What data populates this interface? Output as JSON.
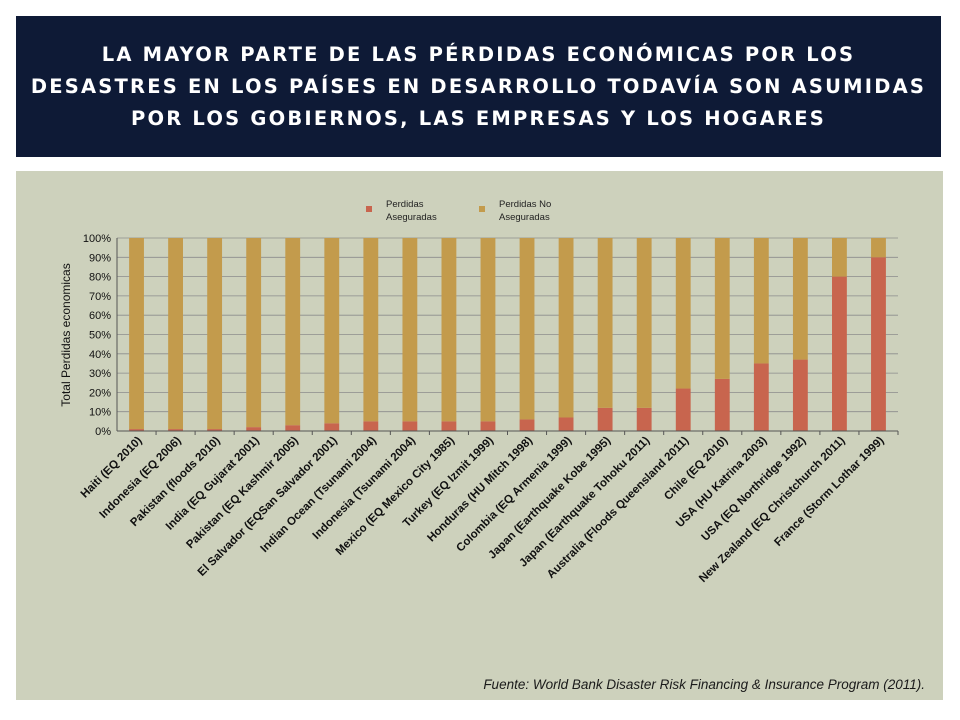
{
  "header": {
    "title": "LA MAYOR PARTE DE LAS PÉRDIDAS ECONÓMICAS POR LOS DESASTRES EN LOS PAÍSES EN DESARROLLO TODAVÍA SON ASUMIDAS POR LOS GOBIERNOS, LAS EMPRESAS Y LOS HOGARES"
  },
  "footer": {
    "source": "Fuente: World Bank Disaster Risk Financing & Insurance Program (2011)."
  },
  "colors": {
    "title_bg": "#0e1a36",
    "panel_bg": "#cdd1bc",
    "insured": "#c8654e",
    "uninsured": "#c39b4c"
  },
  "chart_data": {
    "type": "bar",
    "stacked": true,
    "title": "",
    "xlabel": "",
    "ylabel": "Total Perdidas economicas",
    "ylim": [
      0,
      100
    ],
    "yticks": [
      "0%",
      "10%",
      "20%",
      "30%",
      "40%",
      "50%",
      "60%",
      "70%",
      "80%",
      "90%",
      "100%"
    ],
    "grid": true,
    "legend_position": "top",
    "categories": [
      "Haiti (EQ 2010)",
      "Indonesia (EQ 2006)",
      "Pakistan (floods 2010)",
      "India (EQ Gujarat 2001)",
      "Pakistan (EQ Kashmir 2005)",
      "El Salvador (EQSan Salvador 2001)",
      "Indian Ocean (Tsunami 2004)",
      "Indonesia (Tsunami 2004)",
      "Mexico (EQ Mexico City 1985)",
      "Turkey (EQ Izmit 1999)",
      "Honduras (HU Mitch 1998)",
      "Colombia (EQ Armenia 1999)",
      "Japan (Earthquake Kobe 1995)",
      "Japan (Earthquake Tohoku 2011)",
      "Australia (Floods Queensland 2011)",
      "Chile (EQ 2010)",
      "USA (HU Katrina 2003)",
      "USA (EQ Northridge 1992)",
      "New Zealand (EQ Christchurch 2011)",
      "France (Storm Lothar 1999)"
    ],
    "series": [
      {
        "name": "Perdidas Aseguradas",
        "values": [
          1,
          1,
          1,
          2,
          3,
          4,
          5,
          5,
          5,
          5,
          6,
          7,
          12,
          12,
          22,
          27,
          35,
          37,
          80,
          90
        ]
      },
      {
        "name": "Perdidas No Aseguradas",
        "values": [
          99,
          99,
          99,
          98,
          97,
          96,
          95,
          95,
          95,
          95,
          94,
          93,
          88,
          88,
          78,
          73,
          65,
          63,
          20,
          10
        ]
      }
    ]
  }
}
